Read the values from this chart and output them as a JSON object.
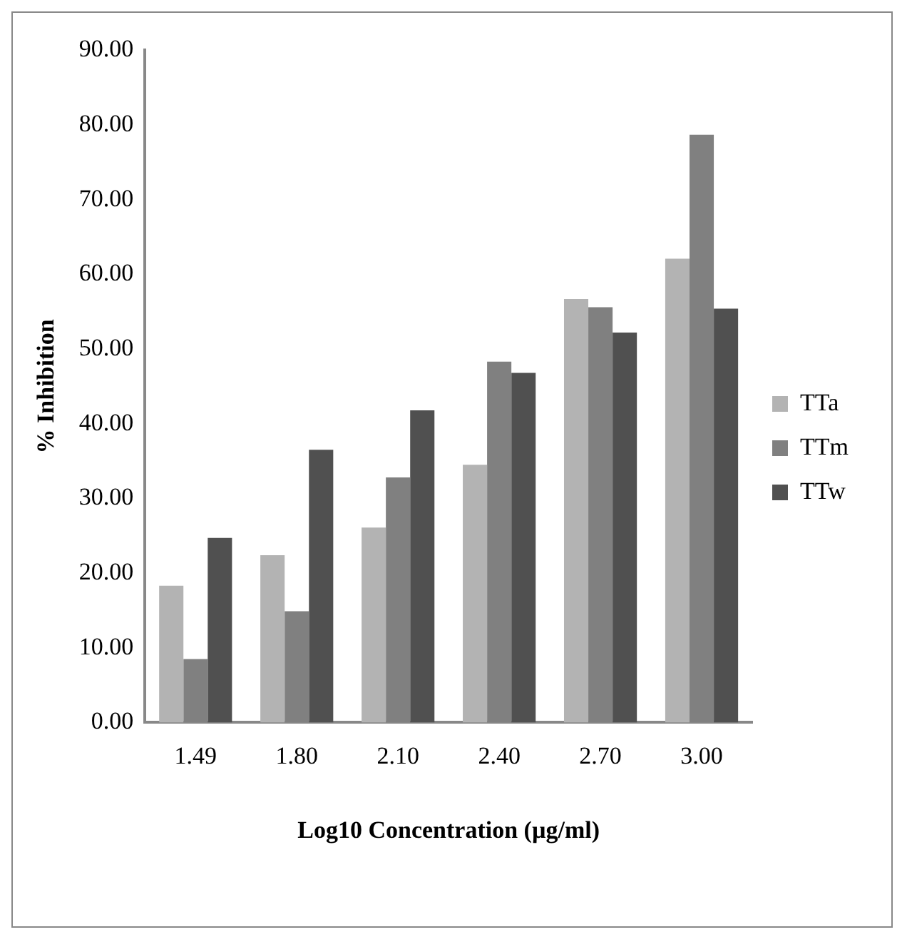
{
  "chart_data": {
    "type": "bar",
    "xlabel": "Log10 Concentration (µg/ml)",
    "ylabel": "% Inhibition",
    "categories": [
      "1.49",
      "1.80",
      "2.10",
      "2.40",
      "2.70",
      "3.00"
    ],
    "series": [
      {
        "name": "TTa",
        "color": "#b3b3b3",
        "values": [
          18.3,
          22.4,
          26.1,
          34.5,
          56.7,
          62.1
        ]
      },
      {
        "name": "TTm",
        "color": "#808080",
        "values": [
          8.5,
          14.9,
          32.8,
          48.3,
          55.6,
          78.7
        ]
      },
      {
        "name": "TTw",
        "color": "#505050",
        "values": [
          24.7,
          36.5,
          41.8,
          46.8,
          52.2,
          55.4
        ]
      }
    ],
    "ylim": [
      0,
      90
    ],
    "yticks": [
      {
        "value": 0,
        "label": "0.00"
      },
      {
        "value": 10,
        "label": "10.00"
      },
      {
        "value": 20,
        "label": "20.00"
      },
      {
        "value": 30,
        "label": "30.00"
      },
      {
        "value": 40,
        "label": "40.00"
      },
      {
        "value": 50,
        "label": "50.00"
      },
      {
        "value": 60,
        "label": "60.00"
      },
      {
        "value": 70,
        "label": "70.00"
      },
      {
        "value": 80,
        "label": "80.00"
      },
      {
        "value": 90,
        "label": "90.00"
      }
    ],
    "grid": false,
    "legend": "right"
  }
}
